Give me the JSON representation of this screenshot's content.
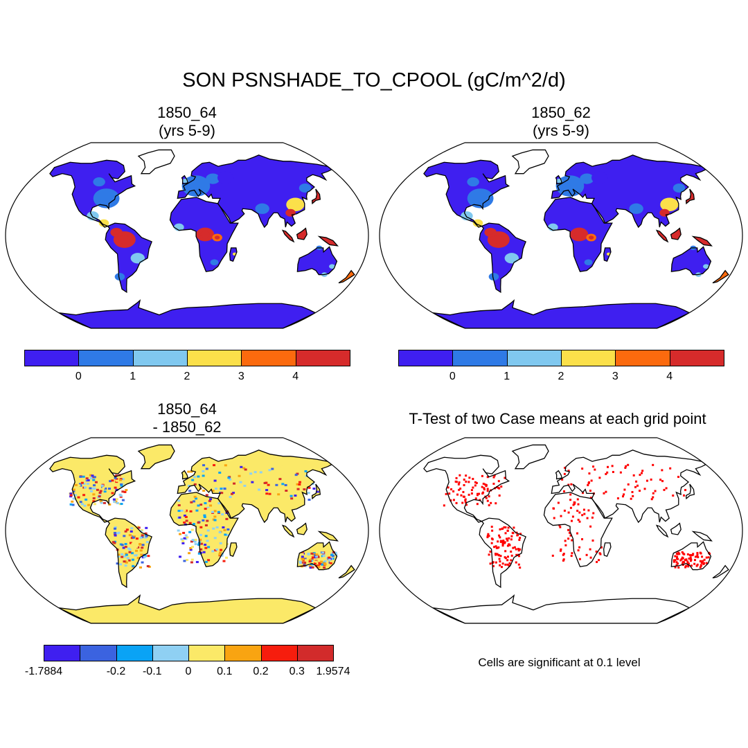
{
  "title": "SON PSNSHADE_TO_CPOOL (gC/m^2/d)",
  "panels": [
    {
      "id": "case1",
      "title_line1": "1850_64",
      "title_line2": "(yrs 5-9)",
      "type": "field"
    },
    {
      "id": "case2",
      "title_line1": "1850_62",
      "title_line2": "(yrs 5-9)",
      "type": "field"
    },
    {
      "id": "diff",
      "title_line1": "1850_64",
      "title_line2": "- 1850_62",
      "type": "difference"
    },
    {
      "id": "ttest",
      "title_line1": "T-Test of two Case means at each grid point",
      "title_line2": "",
      "type": "significance"
    }
  ],
  "colorbars": {
    "field": {
      "colors": [
        "#3f1ff0",
        "#2f7ae6",
        "#80c8ef",
        "#fbe04a",
        "#fb6a0e",
        "#d62b2b"
      ],
      "labels": [
        "0",
        "1",
        "2",
        "3",
        "4"
      ]
    },
    "difference": {
      "colors": [
        "#3f1ff0",
        "#3b63e0",
        "#0aa3f5",
        "#8fd0f3",
        "#fbe968",
        "#f9a411",
        "#f61d0d",
        "#d22b2b"
      ],
      "labels": [
        "-1.7884",
        "-0.2",
        "-0.1",
        "0",
        "0.1",
        "0.2",
        "0.3",
        "1.9574"
      ]
    }
  },
  "significance_note": "Cells are significant at 0.1 level",
  "significance_color": "#ff0000",
  "ocean_color": "#ffffff",
  "coastline_color": "#000000"
}
